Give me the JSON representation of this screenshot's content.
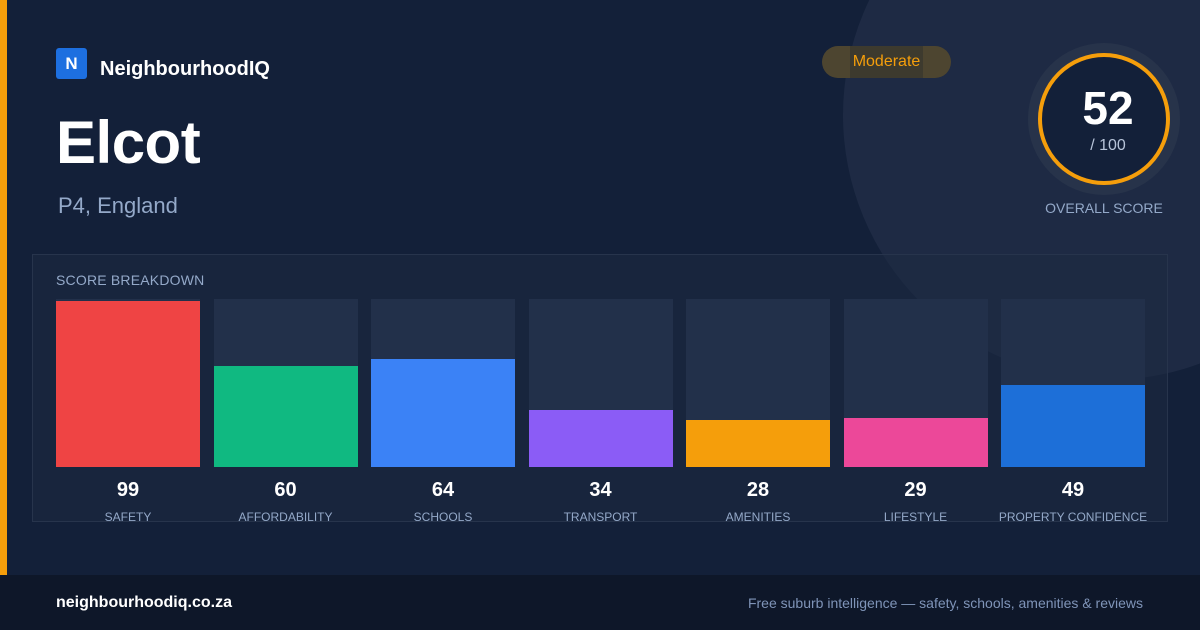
{
  "brand": {
    "logo_letter": "N",
    "name": "NeighbourhoodIQ"
  },
  "suburb": {
    "name": "Elcot",
    "location": "P4, England"
  },
  "rating": {
    "label": "Moderate",
    "color": "#f59e0b"
  },
  "overall": {
    "score": "52",
    "max": "/ 100",
    "caption": "OVERALL SCORE"
  },
  "breakdown": {
    "label": "SCORE BREAKDOWN",
    "items": [
      {
        "label": "SAFETY",
        "value": 99,
        "color": "#ef4444"
      },
      {
        "label": "AFFORDABILITY",
        "value": 60,
        "color": "#10b981"
      },
      {
        "label": "SCHOOLS",
        "value": 64,
        "color": "#3b82f6"
      },
      {
        "label": "TRANSPORT",
        "value": 34,
        "color": "#8b5cf6"
      },
      {
        "label": "AMENITIES",
        "value": 28,
        "color": "#f59e0b"
      },
      {
        "label": "LIFESTYLE",
        "value": 29,
        "color": "#ec4899"
      },
      {
        "label": "PROPERTY CONFIDENCE",
        "value": 49,
        "color": "#1d6fd8"
      }
    ]
  },
  "footer": {
    "domain": "neighbourhoodiq.co.za",
    "tagline": "Free suburb intelligence — safety, schools, amenities & reviews"
  }
}
